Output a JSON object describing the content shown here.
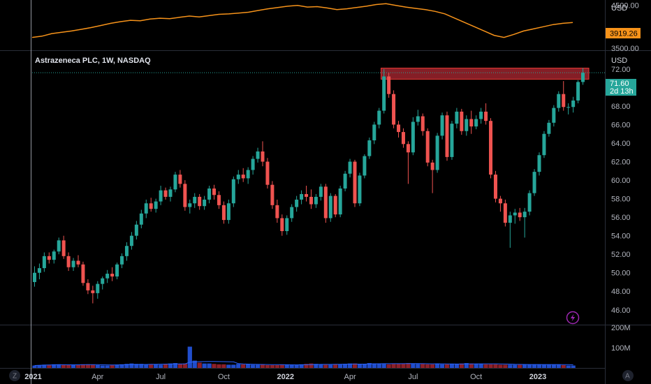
{
  "header": {
    "title": "Astrazeneca PLC, 1W, NASDAQ"
  },
  "colors": {
    "up": "#26a69a",
    "down": "#ef5350",
    "up_volume": "#26a69a",
    "down_volume": "#ef5350",
    "index_line": "#f7931a",
    "resistance_zone": "#b22833",
    "price_tag": "#26a69a",
    "index_tag": "#f7931a",
    "grid_line": "#2a2e39"
  },
  "buttons": {
    "left_corner": "Z",
    "right_corner": "A",
    "alert_icon": "lightning-icon"
  },
  "chart_data": [
    {
      "type": "line",
      "name": "index_overlay",
      "unit": "USD",
      "ylim": [
        3450,
        4560
      ],
      "y_ticks": [
        "4500.00",
        "3500.00"
      ],
      "last_value_tag": "3919.26",
      "x": [
        0,
        2,
        4,
        6,
        8,
        10,
        12,
        14,
        16,
        18,
        20,
        22,
        24,
        26,
        28,
        30,
        32,
        34,
        36,
        38,
        40,
        42,
        44,
        46,
        48,
        50,
        52,
        54,
        56,
        58,
        60,
        62,
        64,
        66,
        68,
        70,
        72,
        74,
        76,
        78,
        80,
        82,
        84,
        86,
        88,
        90,
        92,
        94,
        96,
        98,
        100,
        102,
        104,
        106,
        108,
        110
      ],
      "values": [
        3750,
        3780,
        3840,
        3870,
        3900,
        3940,
        3980,
        4030,
        4080,
        4120,
        4150,
        4140,
        4180,
        4200,
        4190,
        4220,
        4250,
        4230,
        4260,
        4290,
        4300,
        4320,
        4340,
        4380,
        4420,
        4450,
        4480,
        4500,
        4460,
        4470,
        4440,
        4400,
        4420,
        4450,
        4480,
        4520,
        4540,
        4500,
        4460,
        4430,
        4400,
        4360,
        4300,
        4200,
        4100,
        4000,
        3900,
        3800,
        3750,
        3820,
        3900,
        3950,
        4000,
        4050,
        4080,
        4100
      ]
    },
    {
      "type": "candlestick",
      "name": "Astrazeneca PLC",
      "unit": "USD",
      "ylim": [
        44.4,
        73.8
      ],
      "y_ticks": [
        "72.00",
        "70.00",
        "68.00",
        "66.00",
        "64.00",
        "62.00",
        "60.00",
        "58.00",
        "56.00",
        "54.00",
        "52.00",
        "50.00",
        "48.00",
        "46.00"
      ],
      "x_ticks": [
        "2021",
        "Apr",
        "Jul",
        "Oct",
        "2022",
        "Apr",
        "Jul",
        "Oct",
        "2023"
      ],
      "last_price": "71.60",
      "countdown": "2d 13h",
      "resistance_zone": {
        "low": 70.9,
        "high": 72.1
      },
      "candles": [
        {
          "o": 49.0,
          "h": 50.7,
          "l": 48.5,
          "c": 50.0
        },
        {
          "o": 50.0,
          "h": 51.0,
          "l": 49.3,
          "c": 50.5
        },
        {
          "o": 50.5,
          "h": 52.2,
          "l": 50.1,
          "c": 51.8
        },
        {
          "o": 51.8,
          "h": 52.2,
          "l": 51.0,
          "c": 51.4
        },
        {
          "o": 51.4,
          "h": 52.5,
          "l": 51.0,
          "c": 52.3
        },
        {
          "o": 52.3,
          "h": 53.8,
          "l": 52.0,
          "c": 53.5
        },
        {
          "o": 53.5,
          "h": 54.0,
          "l": 51.5,
          "c": 51.8
        },
        {
          "o": 51.8,
          "h": 52.2,
          "l": 50.2,
          "c": 50.6
        },
        {
          "o": 50.6,
          "h": 51.6,
          "l": 50.2,
          "c": 51.3
        },
        {
          "o": 51.3,
          "h": 51.9,
          "l": 50.6,
          "c": 50.9
        },
        {
          "o": 50.9,
          "h": 51.2,
          "l": 48.6,
          "c": 48.9
        },
        {
          "o": 48.9,
          "h": 49.3,
          "l": 47.7,
          "c": 48.1
        },
        {
          "o": 48.1,
          "h": 48.6,
          "l": 46.7,
          "c": 47.8
        },
        {
          "o": 47.8,
          "h": 49.1,
          "l": 47.2,
          "c": 48.8
        },
        {
          "o": 48.8,
          "h": 49.6,
          "l": 48.2,
          "c": 49.4
        },
        {
          "o": 49.4,
          "h": 50.3,
          "l": 48.9,
          "c": 49.9
        },
        {
          "o": 49.9,
          "h": 50.6,
          "l": 49.1,
          "c": 49.6
        },
        {
          "o": 49.6,
          "h": 51.1,
          "l": 49.3,
          "c": 50.9
        },
        {
          "o": 50.9,
          "h": 52.1,
          "l": 50.5,
          "c": 51.8
        },
        {
          "o": 51.8,
          "h": 53.3,
          "l": 51.3,
          "c": 52.9
        },
        {
          "o": 52.9,
          "h": 54.4,
          "l": 52.5,
          "c": 54.0
        },
        {
          "o": 54.0,
          "h": 55.6,
          "l": 53.6,
          "c": 55.2
        },
        {
          "o": 55.2,
          "h": 56.8,
          "l": 54.8,
          "c": 56.4
        },
        {
          "o": 56.4,
          "h": 57.9,
          "l": 55.9,
          "c": 57.5
        },
        {
          "o": 57.5,
          "h": 58.1,
          "l": 56.6,
          "c": 56.9
        },
        {
          "o": 56.9,
          "h": 58.0,
          "l": 56.5,
          "c": 57.7
        },
        {
          "o": 57.7,
          "h": 59.4,
          "l": 57.3,
          "c": 58.9
        },
        {
          "o": 58.9,
          "h": 59.2,
          "l": 57.9,
          "c": 58.2
        },
        {
          "o": 58.2,
          "h": 59.3,
          "l": 57.7,
          "c": 59.0
        },
        {
          "o": 59.0,
          "h": 60.9,
          "l": 58.7,
          "c": 60.6
        },
        {
          "o": 60.6,
          "h": 61.1,
          "l": 59.2,
          "c": 59.6
        },
        {
          "o": 59.6,
          "h": 60.0,
          "l": 56.7,
          "c": 57.1
        },
        {
          "o": 57.1,
          "h": 57.9,
          "l": 56.4,
          "c": 57.5
        },
        {
          "o": 57.5,
          "h": 58.6,
          "l": 57.0,
          "c": 58.2
        },
        {
          "o": 58.2,
          "h": 58.5,
          "l": 56.8,
          "c": 57.2
        },
        {
          "o": 57.2,
          "h": 58.3,
          "l": 56.8,
          "c": 57.9
        },
        {
          "o": 57.9,
          "h": 59.4,
          "l": 57.5,
          "c": 59.1
        },
        {
          "o": 59.1,
          "h": 59.5,
          "l": 57.9,
          "c": 58.4
        },
        {
          "o": 58.4,
          "h": 58.8,
          "l": 56.9,
          "c": 57.3
        },
        {
          "o": 57.3,
          "h": 57.7,
          "l": 55.3,
          "c": 55.7
        },
        {
          "o": 55.7,
          "h": 57.9,
          "l": 55.3,
          "c": 57.5
        },
        {
          "o": 57.5,
          "h": 60.4,
          "l": 57.1,
          "c": 60.1
        },
        {
          "o": 60.1,
          "h": 61.1,
          "l": 59.6,
          "c": 60.6
        },
        {
          "o": 60.6,
          "h": 61.3,
          "l": 59.8,
          "c": 60.2
        },
        {
          "o": 60.2,
          "h": 61.4,
          "l": 59.6,
          "c": 61.1
        },
        {
          "o": 61.1,
          "h": 62.6,
          "l": 60.6,
          "c": 62.3
        },
        {
          "o": 62.3,
          "h": 63.5,
          "l": 61.9,
          "c": 63.1
        },
        {
          "o": 63.1,
          "h": 64.2,
          "l": 61.5,
          "c": 62.0
        },
        {
          "o": 62.0,
          "h": 62.4,
          "l": 59.1,
          "c": 59.5
        },
        {
          "o": 59.5,
          "h": 59.9,
          "l": 56.9,
          "c": 57.3
        },
        {
          "o": 57.3,
          "h": 57.9,
          "l": 55.4,
          "c": 55.9
        },
        {
          "o": 55.9,
          "h": 56.3,
          "l": 54.0,
          "c": 54.5
        },
        {
          "o": 54.5,
          "h": 56.2,
          "l": 54.1,
          "c": 55.9
        },
        {
          "o": 55.9,
          "h": 57.4,
          "l": 55.5,
          "c": 57.1
        },
        {
          "o": 57.1,
          "h": 58.3,
          "l": 56.6,
          "c": 57.9
        },
        {
          "o": 57.9,
          "h": 58.9,
          "l": 57.4,
          "c": 58.5
        },
        {
          "o": 58.5,
          "h": 59.4,
          "l": 57.7,
          "c": 58.2
        },
        {
          "o": 58.2,
          "h": 59.0,
          "l": 56.9,
          "c": 57.4
        },
        {
          "o": 57.4,
          "h": 58.5,
          "l": 57.0,
          "c": 58.2
        },
        {
          "o": 58.2,
          "h": 59.6,
          "l": 57.8,
          "c": 59.3
        },
        {
          "o": 59.3,
          "h": 59.6,
          "l": 55.4,
          "c": 55.9
        },
        {
          "o": 55.9,
          "h": 58.6,
          "l": 55.5,
          "c": 58.3
        },
        {
          "o": 58.3,
          "h": 58.5,
          "l": 56.0,
          "c": 56.3
        },
        {
          "o": 56.3,
          "h": 59.4,
          "l": 56.0,
          "c": 59.1
        },
        {
          "o": 59.1,
          "h": 61.0,
          "l": 58.8,
          "c": 60.7
        },
        {
          "o": 60.7,
          "h": 62.3,
          "l": 60.3,
          "c": 62.0
        },
        {
          "o": 62.0,
          "h": 62.2,
          "l": 57.1,
          "c": 57.5
        },
        {
          "o": 57.5,
          "h": 60.8,
          "l": 57.2,
          "c": 60.5
        },
        {
          "o": 60.5,
          "h": 62.8,
          "l": 60.2,
          "c": 62.6
        },
        {
          "o": 62.6,
          "h": 64.6,
          "l": 62.3,
          "c": 64.3
        },
        {
          "o": 64.3,
          "h": 66.3,
          "l": 63.9,
          "c": 66.0
        },
        {
          "o": 66.0,
          "h": 67.8,
          "l": 65.6,
          "c": 67.5
        },
        {
          "o": 67.5,
          "h": 72.0,
          "l": 67.2,
          "c": 71.2
        },
        {
          "o": 71.2,
          "h": 71.6,
          "l": 68.9,
          "c": 69.3
        },
        {
          "o": 69.3,
          "h": 69.7,
          "l": 65.6,
          "c": 66.0
        },
        {
          "o": 66.0,
          "h": 66.4,
          "l": 64.6,
          "c": 65.2
        },
        {
          "o": 65.2,
          "h": 65.6,
          "l": 63.5,
          "c": 63.9
        },
        {
          "o": 63.9,
          "h": 64.2,
          "l": 59.6,
          "c": 63.0
        },
        {
          "o": 63.0,
          "h": 66.8,
          "l": 62.7,
          "c": 66.3
        },
        {
          "o": 66.3,
          "h": 67.6,
          "l": 65.9,
          "c": 66.9
        },
        {
          "o": 66.9,
          "h": 67.2,
          "l": 64.8,
          "c": 65.3
        },
        {
          "o": 65.3,
          "h": 65.6,
          "l": 61.5,
          "c": 61.9
        },
        {
          "o": 61.9,
          "h": 62.2,
          "l": 58.6,
          "c": 61.1
        },
        {
          "o": 61.1,
          "h": 65.1,
          "l": 60.8,
          "c": 64.8
        },
        {
          "o": 64.8,
          "h": 67.3,
          "l": 64.4,
          "c": 67.0
        },
        {
          "o": 67.0,
          "h": 67.4,
          "l": 62.1,
          "c": 62.5
        },
        {
          "o": 62.5,
          "h": 66.4,
          "l": 62.2,
          "c": 66.1
        },
        {
          "o": 66.1,
          "h": 67.8,
          "l": 65.6,
          "c": 67.4
        },
        {
          "o": 67.4,
          "h": 67.7,
          "l": 64.9,
          "c": 65.3
        },
        {
          "o": 65.3,
          "h": 67.0,
          "l": 64.8,
          "c": 66.6
        },
        {
          "o": 66.6,
          "h": 67.5,
          "l": 65.0,
          "c": 65.8
        },
        {
          "o": 65.8,
          "h": 67.0,
          "l": 65.5,
          "c": 66.6
        },
        {
          "o": 66.6,
          "h": 67.8,
          "l": 66.1,
          "c": 67.4
        },
        {
          "o": 67.4,
          "h": 68.3,
          "l": 66.0,
          "c": 66.4
        },
        {
          "o": 66.4,
          "h": 66.7,
          "l": 60.2,
          "c": 60.6
        },
        {
          "o": 60.6,
          "h": 61.0,
          "l": 57.6,
          "c": 58.0
        },
        {
          "o": 58.0,
          "h": 58.3,
          "l": 56.6,
          "c": 57.5
        },
        {
          "o": 57.5,
          "h": 57.9,
          "l": 55.0,
          "c": 55.4
        },
        {
          "o": 55.4,
          "h": 56.6,
          "l": 52.7,
          "c": 56.2
        },
        {
          "o": 56.2,
          "h": 56.9,
          "l": 55.3,
          "c": 56.5
        },
        {
          "o": 56.5,
          "h": 57.0,
          "l": 55.6,
          "c": 56.0
        },
        {
          "o": 56.0,
          "h": 57.0,
          "l": 53.8,
          "c": 56.6
        },
        {
          "o": 56.6,
          "h": 58.9,
          "l": 56.2,
          "c": 58.6
        },
        {
          "o": 58.6,
          "h": 61.2,
          "l": 58.3,
          "c": 60.9
        },
        {
          "o": 60.9,
          "h": 63.0,
          "l": 60.5,
          "c": 62.7
        },
        {
          "o": 62.7,
          "h": 65.3,
          "l": 62.4,
          "c": 65.0
        },
        {
          "o": 65.0,
          "h": 66.5,
          "l": 64.7,
          "c": 66.2
        },
        {
          "o": 66.2,
          "h": 68.1,
          "l": 65.8,
          "c": 67.8
        },
        {
          "o": 67.8,
          "h": 69.6,
          "l": 67.4,
          "c": 69.3
        },
        {
          "o": 69.3,
          "h": 70.7,
          "l": 67.5,
          "c": 67.9
        },
        {
          "o": 67.9,
          "h": 68.3,
          "l": 67.1,
          "c": 67.9
        },
        {
          "o": 67.9,
          "h": 69.0,
          "l": 67.3,
          "c": 68.6
        },
        {
          "o": 68.6,
          "h": 70.8,
          "l": 68.3,
          "c": 70.6
        },
        {
          "o": 70.6,
          "h": 72.1,
          "l": 70.3,
          "c": 71.6
        }
      ]
    },
    {
      "type": "bar",
      "name": "volume",
      "ylim": [
        0,
        210
      ],
      "y_ticks": [
        "200M",
        "100M"
      ],
      "values": [
        12,
        14,
        16,
        16,
        18,
        18,
        16,
        14,
        14,
        16,
        18,
        18,
        16,
        14,
        12,
        12,
        14,
        16,
        18,
        20,
        22,
        20,
        20,
        18,
        18,
        18,
        16,
        20,
        22,
        24,
        20,
        22,
        105,
        36,
        26,
        22,
        22,
        20,
        18,
        18,
        16,
        16,
        20,
        18,
        18,
        16,
        16,
        16,
        14,
        14,
        14,
        16,
        16,
        14,
        16,
        18,
        20,
        22,
        20,
        18,
        16,
        16,
        18,
        18,
        20,
        22,
        22,
        20,
        20,
        24,
        22,
        22,
        20,
        18,
        20,
        22,
        22,
        24,
        22,
        20,
        20,
        18,
        18,
        20,
        18,
        18,
        20,
        20,
        22,
        24,
        22,
        20,
        20,
        18,
        18,
        18,
        16,
        16,
        16,
        16,
        16,
        18,
        18,
        18,
        18,
        16,
        16,
        16,
        16,
        14,
        12,
        12
      ],
      "avg_line_color": "#2962ff"
    }
  ]
}
